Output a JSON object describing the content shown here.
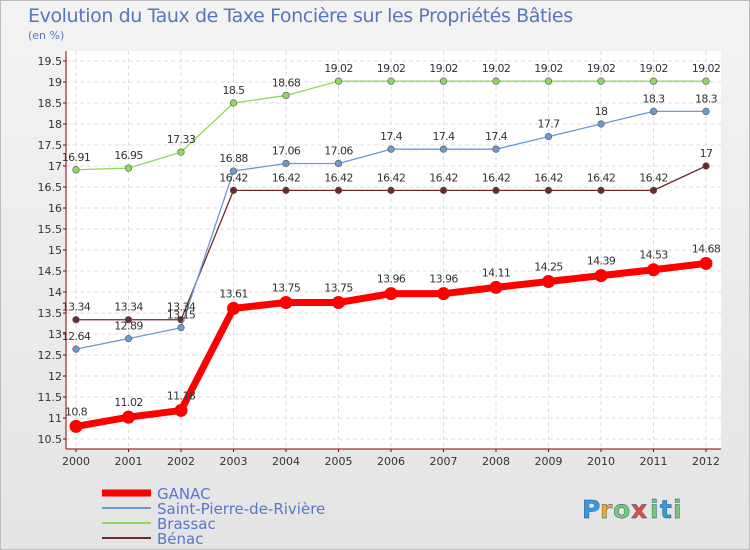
{
  "title": "Evolution du Taux de Taxe Foncière sur les Propriétés Bâties",
  "unit": "(en %)",
  "logo": {
    "text": "Proxiti",
    "letters": [
      "P",
      "r",
      "o",
      "x",
      "i",
      "t",
      "i"
    ]
  },
  "chart_data": {
    "type": "line",
    "title": "Evolution du Taux de Taxe Foncière sur les Propriétés Bâties",
    "ylabel": "(en %)",
    "xlabel": "",
    "grid": true,
    "ylim": [
      10.5,
      19.5
    ],
    "yticks": [
      "10.5",
      "11",
      "11.5",
      "12",
      "12.5",
      "13",
      "13.5",
      "14",
      "14.5",
      "15",
      "15.5",
      "16",
      "16.5",
      "17",
      "17.5",
      "18",
      "18.5",
      "19",
      "19.5"
    ],
    "x": [
      "2000",
      "2001",
      "2002",
      "2003",
      "2004",
      "2005",
      "2006",
      "2007",
      "2008",
      "2009",
      "2010",
      "2011",
      "2012"
    ],
    "series": [
      {
        "name": "GANAC",
        "color": "#ff0000",
        "values": [
          10.8,
          11.02,
          11.18,
          13.61,
          13.75,
          13.75,
          13.96,
          13.96,
          14.11,
          14.25,
          14.39,
          14.53,
          14.68
        ],
        "labels": [
          "10.8",
          "11.02",
          "11.18",
          "13.61",
          "13.75",
          "13.75",
          "13.96",
          "13.96",
          "14.11",
          "14.25",
          "14.39",
          "14.53",
          "14.68"
        ]
      },
      {
        "name": "Saint-Pierre-de-Rivière",
        "color": "#6b9bd2",
        "values": [
          12.64,
          12.89,
          13.15,
          16.88,
          17.06,
          17.06,
          17.4,
          17.4,
          17.4,
          17.7,
          18,
          18.3,
          18.3
        ],
        "labels": [
          "12.64",
          "12.89",
          "13.15",
          "16.88",
          "17.06",
          "17.06",
          "17.4",
          "17.4",
          "17.4",
          "17.7",
          "18",
          "18.3",
          "18.3"
        ]
      },
      {
        "name": "Brassac",
        "color": "#8cd95b",
        "values": [
          16.91,
          16.95,
          17.33,
          18.5,
          18.68,
          19.02,
          19.02,
          19.02,
          19.02,
          19.02,
          19.02,
          19.02,
          19.02
        ],
        "labels": [
          "16.91",
          "16.95",
          "17.33",
          "18.5",
          "18.68",
          "19.02",
          "19.02",
          "19.02",
          "19.02",
          "19.02",
          "19.02",
          "19.02",
          "19.02"
        ]
      },
      {
        "name": "Bénac",
        "color": "#6e2a2a",
        "values": [
          13.34,
          13.34,
          13.34,
          16.42,
          16.42,
          16.42,
          16.42,
          16.42,
          16.42,
          16.42,
          16.42,
          16.42,
          17
        ],
        "labels": [
          "13.34",
          "13.34",
          "13.34",
          "16.42",
          "16.42",
          "16.42",
          "16.42",
          "16.42",
          "16.42",
          "16.42",
          "16.42",
          "16.42",
          "17"
        ]
      }
    ],
    "legend_position": "bottom-left"
  }
}
